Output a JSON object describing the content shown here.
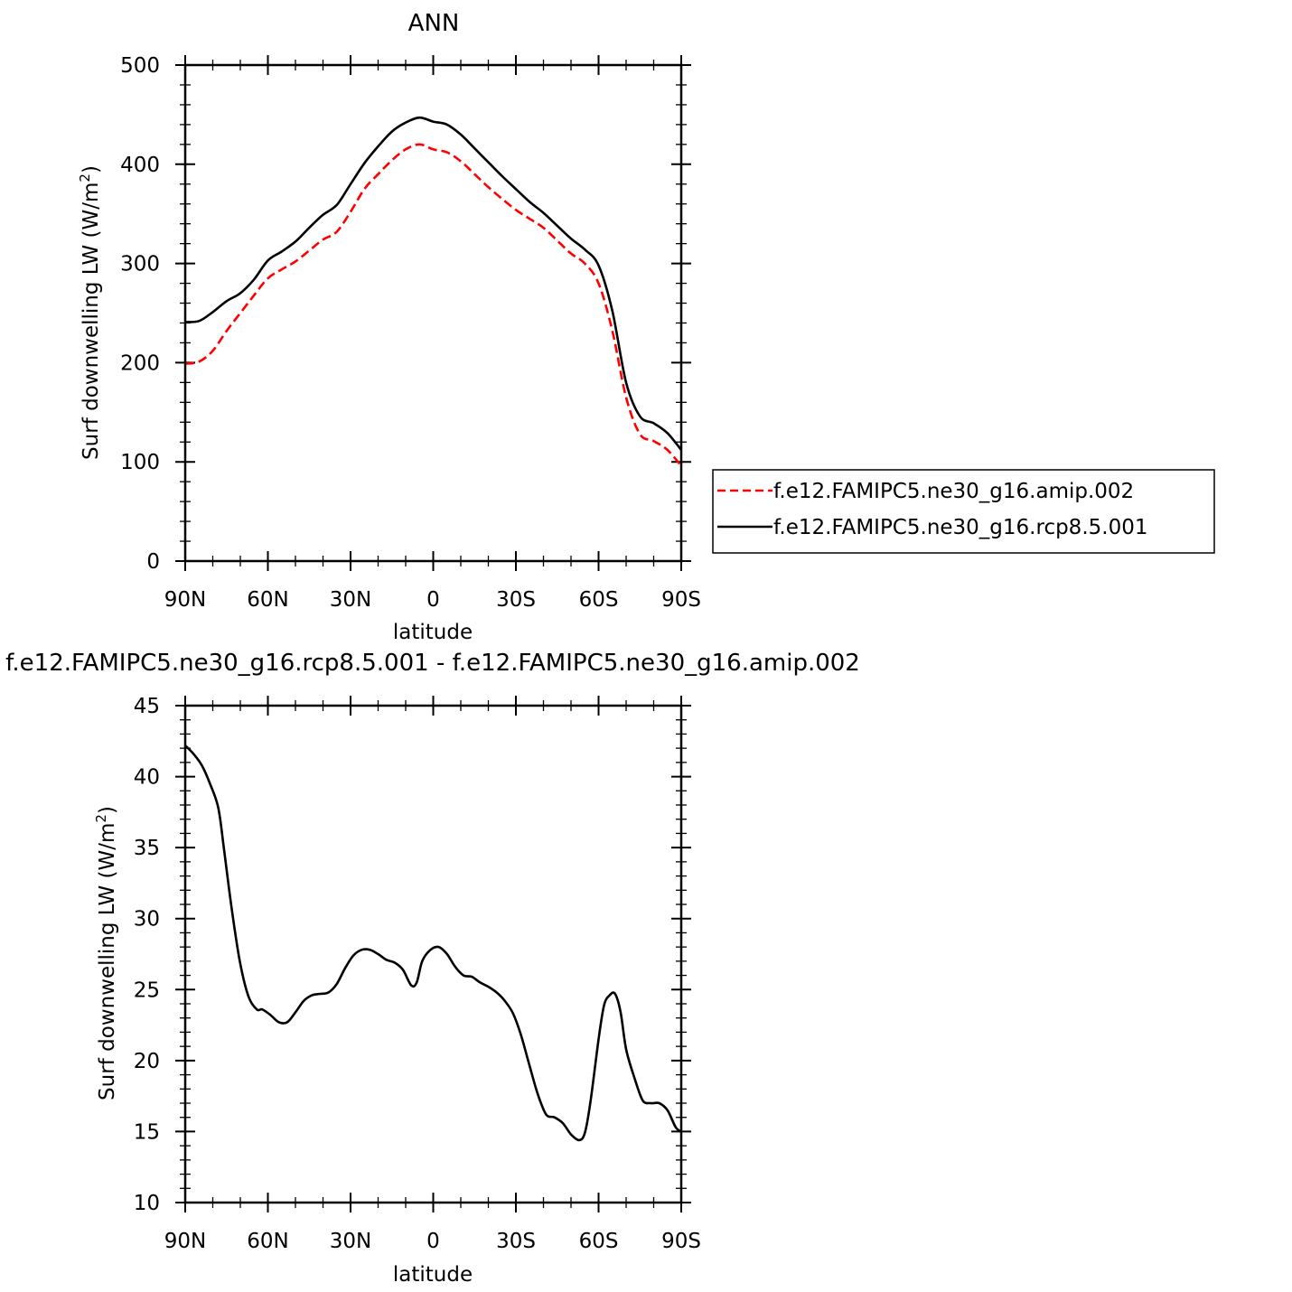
{
  "chart_data": [
    {
      "type": "line",
      "title": "ANN",
      "xlabel": "latitude",
      "ylabel": "Surf downwelling LW (W/m²)",
      "ylabel_parts": {
        "main": "Surf downwelling LW (W/m",
        "sup": "2",
        "end": ")"
      },
      "x_tick_labels": [
        "90N",
        "60N",
        "30N",
        "0",
        "30S",
        "60S",
        "90S"
      ],
      "x_tick_values": [
        90,
        60,
        30,
        0,
        -30,
        -60,
        -90
      ],
      "xlim": [
        90,
        -90
      ],
      "ylim": [
        0,
        500
      ],
      "y_ticks": [
        0,
        100,
        200,
        300,
        400,
        500
      ],
      "y_tick_labels": [
        "0",
        "100",
        "200",
        "300",
        "400",
        "500"
      ],
      "legend_position": "right",
      "x": [
        90,
        85,
        80,
        75,
        70,
        65,
        60,
        55,
        50,
        45,
        40,
        35,
        30,
        25,
        20,
        15,
        10,
        5,
        0,
        -5,
        -10,
        -15,
        -20,
        -25,
        -30,
        -35,
        -40,
        -45,
        -50,
        -55,
        -60,
        -65,
        -70,
        -75,
        -80,
        -85,
        -90
      ],
      "series": [
        {
          "name": "f.e12.FAMIPC5.ne30_g16.amip.002",
          "color": "#ff0000",
          "dash": "dashed",
          "values": [
            199,
            201,
            212,
            232,
            250,
            268,
            285,
            294,
            302,
            313,
            324,
            332,
            352,
            375,
            390,
            404,
            415,
            420,
            415,
            412,
            403,
            390,
            377,
            365,
            354,
            345,
            336,
            323,
            310,
            300,
            280,
            232,
            165,
            128,
            121,
            112,
            96
          ]
        },
        {
          "name": "f.e12.FAMIPC5.ne30_g16.rcp8.5.001",
          "color": "#000000",
          "dash": "solid",
          "values": [
            241,
            242,
            251,
            262,
            270,
            284,
            303,
            312,
            322,
            336,
            349,
            359,
            380,
            401,
            418,
            433,
            442,
            447,
            443,
            440,
            430,
            416,
            402,
            388,
            375,
            362,
            351,
            338,
            325,
            314,
            298,
            252,
            180,
            146,
            139,
            129,
            112
          ]
        }
      ]
    },
    {
      "type": "line",
      "title": "f.e12.FAMIPC5.ne30_g16.rcp8.5.001 - f.e12.FAMIPC5.ne30_g16.amip.002",
      "xlabel": "latitude",
      "ylabel": "Surf downwelling LW (W/m²)",
      "ylabel_parts": {
        "main": "Surf downwelling LW (W/m",
        "sup": "2",
        "end": ")"
      },
      "x_tick_labels": [
        "90N",
        "60N",
        "30N",
        "0",
        "30S",
        "60S",
        "90S"
      ],
      "x_tick_values": [
        90,
        60,
        30,
        0,
        -30,
        -60,
        -90
      ],
      "xlim": [
        90,
        -90
      ],
      "ylim": [
        10,
        45
      ],
      "y_ticks": [
        10,
        15,
        20,
        25,
        30,
        35,
        40,
        45
      ],
      "y_tick_labels": [
        "10",
        "15",
        "20",
        "25",
        "30",
        "35",
        "40",
        "45"
      ],
      "x": [
        90,
        87,
        84,
        81,
        78,
        76,
        73,
        70,
        67,
        64,
        62,
        59,
        56,
        53,
        50,
        47,
        44,
        41,
        38,
        35,
        32,
        29,
        26,
        23,
        20,
        17,
        14,
        11,
        8,
        6,
        4,
        1,
        -2,
        -5,
        -8,
        -11,
        -14,
        -17,
        -20,
        -23,
        -26,
        -29,
        -32,
        -35,
        -38,
        -41,
        -44,
        -47,
        -50,
        -53,
        -55,
        -57,
        -60,
        -62,
        -64,
        -66,
        -68,
        -70,
        -73,
        -76,
        -79,
        -82,
        -85,
        -88,
        -90
      ],
      "series": [
        {
          "name": "",
          "color": "#000000",
          "dash": "solid",
          "values": [
            42.2,
            41.6,
            40.8,
            39.5,
            37.8,
            35.0,
            30.5,
            26.8,
            24.5,
            23.6,
            23.6,
            23.2,
            22.7,
            22.7,
            23.4,
            24.2,
            24.6,
            24.7,
            24.8,
            25.4,
            26.5,
            27.4,
            27.8,
            27.8,
            27.5,
            27.1,
            26.9,
            26.4,
            25.3,
            25.5,
            27.0,
            27.8,
            28.0,
            27.5,
            26.6,
            26.0,
            25.9,
            25.5,
            25.2,
            24.8,
            24.2,
            23.3,
            21.7,
            19.6,
            17.6,
            16.2,
            16.0,
            15.6,
            14.8,
            14.4,
            14.9,
            17.0,
            21.5,
            23.9,
            24.6,
            24.7,
            23.4,
            20.8,
            18.8,
            17.2,
            17.0,
            17.0,
            16.5,
            15.3,
            15.0
          ]
        }
      ]
    }
  ]
}
